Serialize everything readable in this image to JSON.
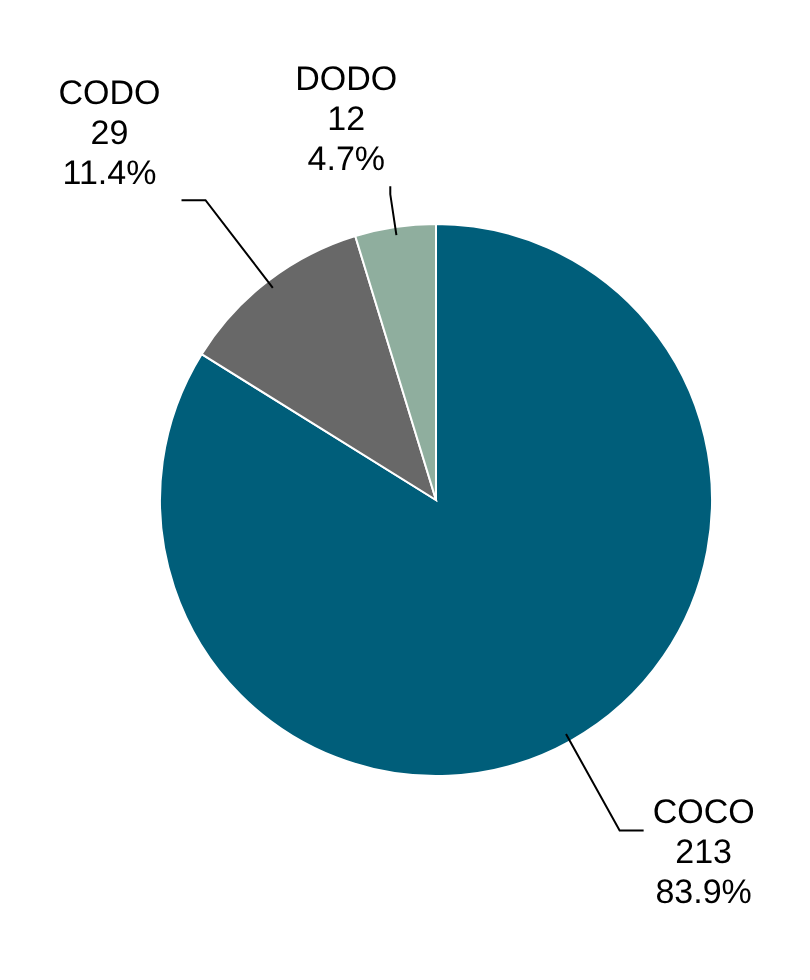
{
  "chart_data": {
    "type": "pie",
    "categories": [
      "COCO",
      "CODO",
      "DODO"
    ],
    "values": [
      213,
      29,
      12
    ],
    "colors": [
      "#005e7a",
      "#686868",
      "#8fae9e"
    ],
    "value_labels": [
      "213\n83.9%",
      "29\n11.4%",
      "12\n4.7%"
    ]
  }
}
